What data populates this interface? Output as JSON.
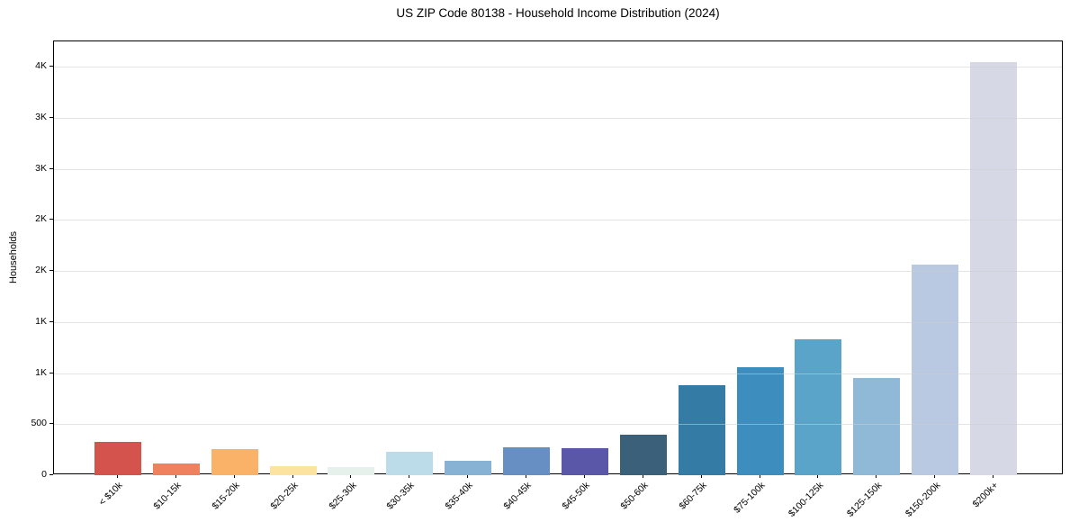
{
  "chart_data": {
    "type": "bar",
    "title": "US ZIP Code 80138 - Household Income Distribution (2024)",
    "xlabel": "",
    "ylabel": "Households",
    "legend": "none",
    "grid": "horizontal",
    "ylim": [
      0,
      4250
    ],
    "yticks": [
      {
        "value": 0,
        "label": "0"
      },
      {
        "value": 500,
        "label": "500"
      },
      {
        "value": 1000,
        "label": "1K"
      },
      {
        "value": 1500,
        "label": "1K"
      },
      {
        "value": 2000,
        "label": "2K"
      },
      {
        "value": 2500,
        "label": "2K"
      },
      {
        "value": 3000,
        "label": "3K"
      },
      {
        "value": 3500,
        "label": "3K"
      },
      {
        "value": 4000,
        "label": "4K"
      }
    ],
    "categories": [
      "< $10k",
      "$10-15k",
      "$15-20k",
      "$20-25k",
      "$25-30k",
      "$30-35k",
      "$35-40k",
      "$40-45k",
      "$45-50k",
      "$50-60k",
      "$60-75k",
      "$75-100k",
      "$100-125k",
      "$125-150k",
      "$150-200k",
      "$200k+"
    ],
    "values": [
      325,
      115,
      255,
      85,
      78,
      230,
      140,
      273,
      268,
      395,
      880,
      1060,
      1330,
      950,
      2060,
      4050
    ],
    "bar_colors": [
      "#d5534d",
      "#f0815f",
      "#f9b268",
      "#fce3a0",
      "#e6f1ec",
      "#bddcea",
      "#87b2d4",
      "#688fc4",
      "#5a57a8",
      "#3a607a",
      "#347ca6",
      "#3d8dbf",
      "#5ba4c9",
      "#90b8d7",
      "#b9c9e2",
      "#d6d8e5"
    ],
    "frame_color": "#000000",
    "background_color": "#ffffff"
  }
}
